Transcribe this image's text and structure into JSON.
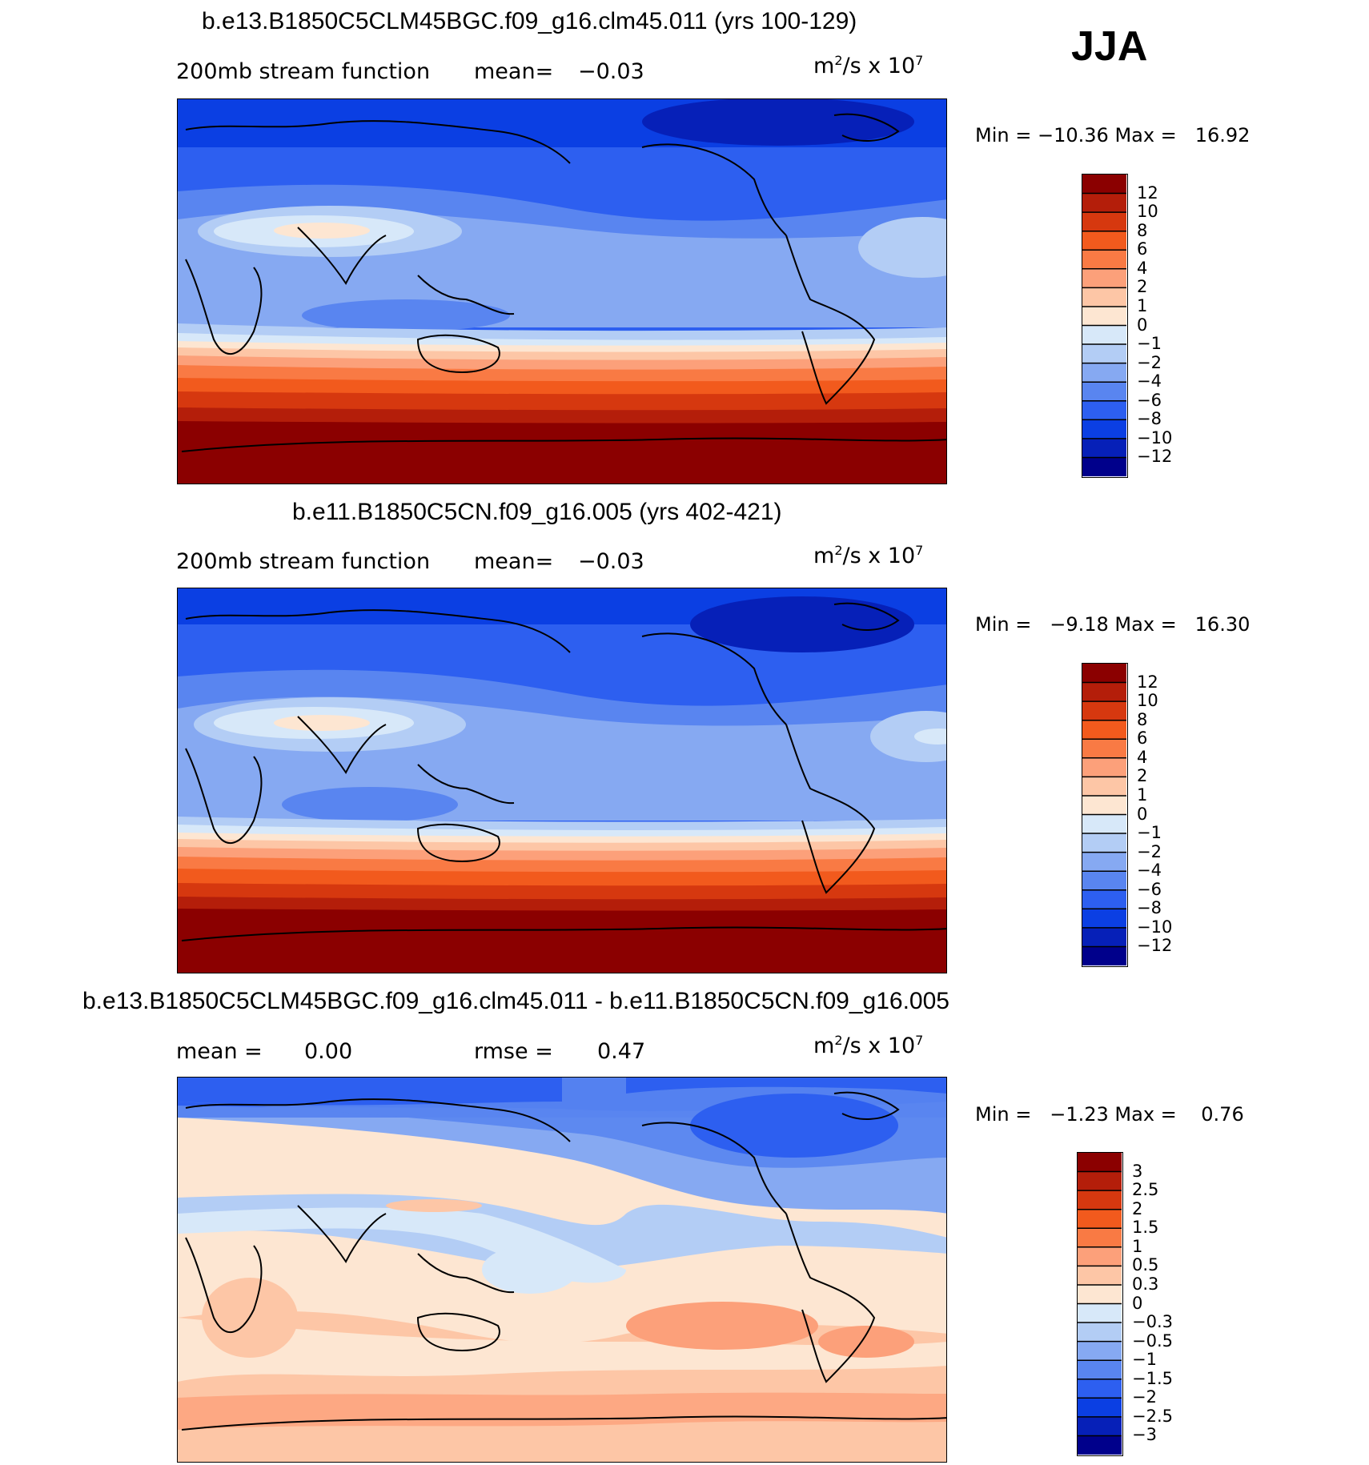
{
  "season": "JJA",
  "units_base": "m",
  "units_sup1": "2",
  "units_mid": "/s x 10",
  "units_sup2": "7",
  "chart_data": [
    {
      "type": "heatmap",
      "title": "b.e13.B1850C5CLM45BGC.f09_g16.clm45.011 (yrs 100-129)",
      "subtitle": "200mb stream function",
      "mean_label": "mean=",
      "mean": "−0.03",
      "min_label": "Min =",
      "min": "−10.36",
      "max_label": "Max =",
      "max": "16.92",
      "levels": [
        "12",
        "10",
        "8",
        "6",
        "4",
        "2",
        "1",
        "0",
        "−1",
        "−2",
        "−4",
        "−6",
        "−8",
        "−10",
        "−12"
      ],
      "colors": [
        "#8b0000",
        "#b41e0a",
        "#d6380f",
        "#f25a1d",
        "#f97a44",
        "#fca07a",
        "#fdc6a6",
        "#fde6d2",
        "#d7e8f9",
        "#b3cdf5",
        "#86a9f2",
        "#5985f0",
        "#2d5ff0",
        "#0b3fe3",
        "#0620b8",
        "#00008b"
      ]
    },
    {
      "type": "heatmap",
      "title": "b.e11.B1850C5CN.f09_g16.005 (yrs 402-421)",
      "subtitle": "200mb stream function",
      "mean_label": "mean=",
      "mean": "−0.03",
      "min_label": "Min =",
      "min": "−9.18",
      "max_label": "Max =",
      "max": "16.30",
      "levels": [
        "12",
        "10",
        "8",
        "6",
        "4",
        "2",
        "1",
        "0",
        "−1",
        "−2",
        "−4",
        "−6",
        "−8",
        "−10",
        "−12"
      ],
      "colors": [
        "#8b0000",
        "#b41e0a",
        "#d6380f",
        "#f25a1d",
        "#f97a44",
        "#fca07a",
        "#fdc6a6",
        "#fde6d2",
        "#d7e8f9",
        "#b3cdf5",
        "#86a9f2",
        "#5985f0",
        "#2d5ff0",
        "#0b3fe3",
        "#0620b8",
        "#00008b"
      ]
    },
    {
      "type": "heatmap",
      "title": "b.e13.B1850C5CLM45BGC.f09_g16.clm45.011 - b.e11.B1850C5CN.f09_g16.005",
      "subtitle": "",
      "mean_label": "mean =",
      "mean": "0.00",
      "rmse_label": "rmse =",
      "rmse": "0.47",
      "min_label": "Min =",
      "min": "−1.23",
      "max_label": "Max =",
      "max": "0.76",
      "levels": [
        "3",
        "2.5",
        "2",
        "1.5",
        "1",
        "0.5",
        "0.3",
        "0",
        "−0.3",
        "−0.5",
        "−1",
        "−1.5",
        "−2",
        "−2.5",
        "−3"
      ],
      "colors": [
        "#8b0000",
        "#b41e0a",
        "#d6380f",
        "#f25a1d",
        "#f97a44",
        "#fca07a",
        "#fdc6a6",
        "#fde6d2",
        "#d7e8f9",
        "#b3cdf5",
        "#86a9f2",
        "#5985f0",
        "#2d5ff0",
        "#0b3fe3",
        "#0620b8",
        "#00008b"
      ]
    }
  ]
}
